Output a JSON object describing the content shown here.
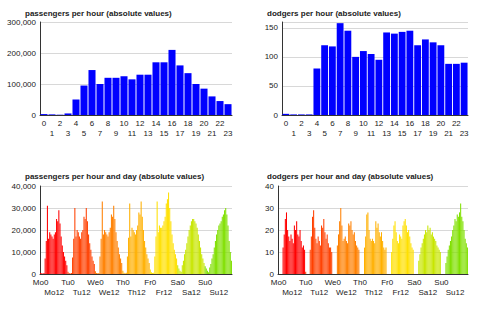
{
  "chart_data": [
    {
      "type": "bar",
      "title": "passengers per hour (absolute values)",
      "categories": [
        "0",
        "1",
        "2",
        "3",
        "4",
        "5",
        "6",
        "7",
        "8",
        "9",
        "10",
        "11",
        "12",
        "13",
        "14",
        "15",
        "16",
        "17",
        "18",
        "19",
        "20",
        "21",
        "22",
        "23"
      ],
      "values": [
        3000,
        2000,
        1000,
        5000,
        50000,
        95000,
        145000,
        100000,
        120000,
        120000,
        125000,
        115000,
        130000,
        130000,
        170000,
        170000,
        210000,
        160000,
        135000,
        100000,
        85000,
        60000,
        45000,
        35000
      ],
      "color": "#0000ff",
      "ylim": [
        0,
        300000
      ],
      "yticks": [
        0,
        {
          "value": 100000,
          "label": "100,000"
        },
        {
          "value": 200000,
          "label": "200,000"
        },
        {
          "value": 300000,
          "label": "300,000"
        }
      ],
      "grid": true
    },
    {
      "type": "bar",
      "title": "dodgers per hour (absolute values)",
      "categories": [
        "0",
        "1",
        "2",
        "3",
        "4",
        "5",
        "6",
        "7",
        "8",
        "9",
        "10",
        "11",
        "12",
        "13",
        "14",
        "15",
        "16",
        "17",
        "18",
        "19",
        "20",
        "21",
        "22",
        "23"
      ],
      "values": [
        2,
        1,
        1,
        1,
        80,
        120,
        118,
        158,
        145,
        100,
        110,
        105,
        95,
        142,
        140,
        143,
        145,
        120,
        130,
        125,
        120,
        88,
        88,
        90
      ],
      "color": "#0000ff",
      "ylim": [
        0,
        160
      ],
      "yticks": [
        0,
        50,
        100,
        150
      ],
      "grid": true
    },
    {
      "type": "bar",
      "title": "passengers per hour and day (absolute values)",
      "categories": [
        "Mo0",
        null,
        null,
        null,
        null,
        null,
        null,
        null,
        null,
        null,
        null,
        null,
        "Mo12",
        null,
        null,
        null,
        null,
        null,
        null,
        null,
        null,
        null,
        null,
        null,
        "Tu0",
        null,
        null,
        null,
        null,
        null,
        null,
        null,
        null,
        null,
        null,
        null,
        "Tu12",
        null,
        null,
        null,
        null,
        null,
        null,
        null,
        null,
        null,
        null,
        null,
        "We0",
        null,
        null,
        null,
        null,
        null,
        null,
        null,
        null,
        null,
        null,
        null,
        "We12",
        null,
        null,
        null,
        null,
        null,
        null,
        null,
        null,
        null,
        null,
        null,
        "Th0",
        null,
        null,
        null,
        null,
        null,
        null,
        null,
        null,
        null,
        null,
        null,
        "Th12",
        null,
        null,
        null,
        null,
        null,
        null,
        null,
        null,
        null,
        null,
        null,
        "Fr0",
        null,
        null,
        null,
        null,
        null,
        null,
        null,
        null,
        null,
        null,
        null,
        "Fr12",
        null,
        null,
        null,
        null,
        null,
        null,
        null,
        null,
        null,
        null,
        null,
        "Sa0",
        null,
        null,
        null,
        null,
        null,
        null,
        null,
        null,
        null,
        null,
        null,
        "Sa12",
        null,
        null,
        null,
        null,
        null,
        null,
        null,
        null,
        null,
        null,
        null,
        "Su0",
        null,
        null,
        null,
        null,
        null,
        null,
        null,
        null,
        null,
        null,
        null,
        "Su12",
        null,
        null,
        null,
        null,
        null,
        null,
        null,
        null,
        null,
        null,
        null
      ],
      "values": [
        500,
        300,
        200,
        400,
        7000,
        15000,
        31000,
        16000,
        19000,
        18000,
        17000,
        16000,
        18000,
        19000,
        25000,
        24000,
        29000,
        23000,
        17000,
        13000,
        10000,
        8000,
        6000,
        4000,
        1000,
        400,
        200,
        500,
        7500,
        16000,
        30000,
        17000,
        20000,
        19000,
        17000,
        16000,
        19000,
        20000,
        26000,
        25000,
        30000,
        24000,
        18000,
        14000,
        11000,
        8000,
        6000,
        4500,
        1200,
        500,
        300,
        500,
        8000,
        16000,
        33000,
        18000,
        20000,
        19000,
        18000,
        17000,
        19000,
        21000,
        27000,
        26000,
        31000,
        25000,
        19000,
        15000,
        12000,
        9000,
        7000,
        5000,
        1500,
        600,
        300,
        600,
        8000,
        16500,
        32000,
        17000,
        21000,
        20000,
        19000,
        18000,
        20000,
        22000,
        28000,
        27000,
        33000,
        26000,
        20000,
        15000,
        12000,
        9000,
        7000,
        5000,
        2000,
        800,
        400,
        600,
        8000,
        17000,
        33000,
        19000,
        22000,
        21000,
        21000,
        22000,
        24000,
        26000,
        32000,
        34000,
        37000,
        30000,
        24000,
        18000,
        14000,
        11000,
        9000,
        7000,
        4000,
        2500,
        1500,
        1000,
        4000,
        6000,
        9000,
        11000,
        14000,
        17000,
        20000,
        22000,
        24000,
        25000,
        25000,
        24000,
        23000,
        21000,
        18000,
        15000,
        12000,
        9000,
        7000,
        5000,
        3500,
        2500,
        1500,
        800,
        3000,
        4500,
        7000,
        9000,
        12000,
        15000,
        18000,
        20000,
        22000,
        23000,
        24000,
        26000,
        27000,
        29000,
        30000,
        27000,
        22000,
        15000,
        10000,
        6000
      ],
      "colors": [
        "#ff0000",
        "#ff0000",
        "#ff0000",
        "#ff0000",
        "#ff0000",
        "#ff0000",
        "#ff0000",
        "#ff0000",
        "#ff0000",
        "#ff0000",
        "#ff0000",
        "#ff0000",
        "#ff0000",
        "#ff0000",
        "#ff0000",
        "#ff0000",
        "#ff0000",
        "#ff0000",
        "#ff0000",
        "#ff0000",
        "#ff0000",
        "#ff0000",
        "#ff0000",
        "#ff0000",
        "#ff4000",
        "#ff4000",
        "#ff4000",
        "#ff4000",
        "#ff4000",
        "#ff4000",
        "#ff4000",
        "#ff4000",
        "#ff4000",
        "#ff4000",
        "#ff4000",
        "#ff4000",
        "#ff4000",
        "#ff4000",
        "#ff4000",
        "#ff4000",
        "#ff4000",
        "#ff4000",
        "#ff4000",
        "#ff4000",
        "#ff4000",
        "#ff4000",
        "#ff4000",
        "#ff4000",
        "#ff8000",
        "#ff8000",
        "#ff8000",
        "#ff8000",
        "#ff8000",
        "#ff8000",
        "#ff8000",
        "#ff8000",
        "#ff8000",
        "#ff8000",
        "#ff8000",
        "#ff8000",
        "#ff8000",
        "#ff8000",
        "#ff8000",
        "#ff8000",
        "#ff8000",
        "#ff8000",
        "#ff8000",
        "#ff8000",
        "#ff8000",
        "#ff8000",
        "#ff8000",
        "#ff8000",
        "#ffb000",
        "#ffb000",
        "#ffb000",
        "#ffb000",
        "#ffb000",
        "#ffb000",
        "#ffb000",
        "#ffb000",
        "#ffb000",
        "#ffb000",
        "#ffb000",
        "#ffb000",
        "#ffb000",
        "#ffb000",
        "#ffb000",
        "#ffb000",
        "#ffb000",
        "#ffb000",
        "#ffb000",
        "#ffb000",
        "#ffb000",
        "#ffb000",
        "#ffb000",
        "#ffb000",
        "#ffe000",
        "#ffe000",
        "#ffe000",
        "#ffe000",
        "#ffe000",
        "#ffe000",
        "#ffe000",
        "#ffe000",
        "#ffe000",
        "#ffe000",
        "#ffe000",
        "#ffe000",
        "#ffe000",
        "#ffe000",
        "#ffe000",
        "#ffe000",
        "#ffe000",
        "#ffe000",
        "#ffe000",
        "#ffe000",
        "#ffe000",
        "#ffe000",
        "#ffe000",
        "#ffe000",
        "#c8e600",
        "#c8e600",
        "#c8e600",
        "#c8e600",
        "#c8e600",
        "#c8e600",
        "#c8e600",
        "#c8e600",
        "#c8e600",
        "#c8e600",
        "#c8e600",
        "#c8e600",
        "#c8e600",
        "#c8e600",
        "#c8e600",
        "#c8e600",
        "#c8e600",
        "#c8e600",
        "#c8e600",
        "#c8e600",
        "#c8e600",
        "#c8e600",
        "#c8e600",
        "#c8e600",
        "#80e000",
        "#80e000",
        "#80e000",
        "#80e000",
        "#80e000",
        "#80e000",
        "#80e000",
        "#80e000",
        "#80e000",
        "#80e000",
        "#80e000",
        "#80e000",
        "#80e000",
        "#80e000",
        "#80e000",
        "#80e000",
        "#80e000",
        "#80e000",
        "#80e000",
        "#80e000",
        "#80e000",
        "#80e000",
        "#80e000",
        "#80e000"
      ],
      "ylim": [
        0,
        40000
      ],
      "yticks": [
        0,
        {
          "value": 10000,
          "label": "10,000"
        },
        {
          "value": 20000,
          "label": "20,000"
        },
        {
          "value": 30000,
          "label": "30,000"
        },
        {
          "value": 40000,
          "label": "40,000"
        }
      ],
      "grid": true
    },
    {
      "type": "bar",
      "title": "dodgers per hour and day (absolute values)",
      "categories": [
        "Mo0",
        null,
        null,
        null,
        null,
        null,
        null,
        null,
        null,
        null,
        null,
        null,
        "Mo12",
        null,
        null,
        null,
        null,
        null,
        null,
        null,
        null,
        null,
        null,
        null,
        "Tu0",
        null,
        null,
        null,
        null,
        null,
        null,
        null,
        null,
        null,
        null,
        null,
        "Tu12",
        null,
        null,
        null,
        null,
        null,
        null,
        null,
        null,
        null,
        null,
        null,
        "We0",
        null,
        null,
        null,
        null,
        null,
        null,
        null,
        null,
        null,
        null,
        null,
        "We12",
        null,
        null,
        null,
        null,
        null,
        null,
        null,
        null,
        null,
        null,
        null,
        "Th0",
        null,
        null,
        null,
        null,
        null,
        null,
        null,
        null,
        null,
        null,
        null,
        "Th12",
        null,
        null,
        null,
        null,
        null,
        null,
        null,
        null,
        null,
        null,
        null,
        "Fr0",
        null,
        null,
        null,
        null,
        null,
        null,
        null,
        null,
        null,
        null,
        null,
        "Fr12",
        null,
        null,
        null,
        null,
        null,
        null,
        null,
        null,
        null,
        null,
        null,
        "Sa0",
        null,
        null,
        null,
        null,
        null,
        null,
        null,
        null,
        null,
        null,
        null,
        "Sa12",
        null,
        null,
        null,
        null,
        null,
        null,
        null,
        null,
        null,
        null,
        null,
        "Su0",
        null,
        null,
        null,
        null,
        null,
        null,
        null,
        null,
        null,
        null,
        null,
        "Su12",
        null,
        null,
        null,
        null,
        null,
        null,
        null,
        null,
        null,
        null,
        null
      ],
      "values": [
        0,
        0,
        0,
        0,
        12,
        18,
        25,
        28,
        20,
        17,
        15,
        18,
        16,
        14,
        22,
        20,
        24,
        18,
        17,
        20,
        15,
        12,
        13,
        11,
        1,
        0,
        0,
        0,
        11,
        17,
        26,
        29,
        21,
        16,
        14,
        17,
        15,
        13,
        22,
        21,
        25,
        19,
        16,
        18,
        14,
        12,
        12,
        10,
        0,
        0,
        0,
        0,
        13,
        18,
        24,
        30,
        22,
        15,
        16,
        17,
        15,
        14,
        23,
        22,
        24,
        20,
        18,
        19,
        15,
        13,
        12,
        11,
        0,
        0,
        0,
        0,
        12,
        17,
        27,
        28,
        20,
        16,
        15,
        16,
        15,
        14,
        24,
        21,
        23,
        19,
        17,
        19,
        15,
        12,
        11,
        12,
        0,
        0,
        0,
        0,
        10,
        16,
        22,
        24,
        19,
        15,
        14,
        18,
        17,
        16,
        22,
        24,
        25,
        22,
        19,
        20,
        17,
        14,
        12,
        11,
        0,
        0,
        0,
        0,
        6,
        9,
        12,
        14,
        16,
        18,
        20,
        19,
        22,
        20,
        21,
        18,
        19,
        17,
        16,
        15,
        13,
        12,
        11,
        10,
        0,
        0,
        0,
        0,
        5,
        8,
        11,
        13,
        15,
        17,
        20,
        22,
        25,
        24,
        27,
        26,
        28,
        32,
        26,
        24,
        20,
        16,
        14,
        12
      ],
      "colors": [
        "#ff0000",
        "#ff0000",
        "#ff0000",
        "#ff0000",
        "#ff0000",
        "#ff0000",
        "#ff0000",
        "#ff0000",
        "#ff0000",
        "#ff0000",
        "#ff0000",
        "#ff0000",
        "#ff0000",
        "#ff0000",
        "#ff0000",
        "#ff0000",
        "#ff0000",
        "#ff0000",
        "#ff0000",
        "#ff0000",
        "#ff0000",
        "#ff0000",
        "#ff0000",
        "#ff0000",
        "#ff4000",
        "#ff4000",
        "#ff4000",
        "#ff4000",
        "#ff4000",
        "#ff4000",
        "#ff4000",
        "#ff4000",
        "#ff4000",
        "#ff4000",
        "#ff4000",
        "#ff4000",
        "#ff4000",
        "#ff4000",
        "#ff4000",
        "#ff4000",
        "#ff4000",
        "#ff4000",
        "#ff4000",
        "#ff4000",
        "#ff4000",
        "#ff4000",
        "#ff4000",
        "#ff4000",
        "#ff8000",
        "#ff8000",
        "#ff8000",
        "#ff8000",
        "#ff8000",
        "#ff8000",
        "#ff8000",
        "#ff8000",
        "#ff8000",
        "#ff8000",
        "#ff8000",
        "#ff8000",
        "#ff8000",
        "#ff8000",
        "#ff8000",
        "#ff8000",
        "#ff8000",
        "#ff8000",
        "#ff8000",
        "#ff8000",
        "#ff8000",
        "#ff8000",
        "#ff8000",
        "#ff8000",
        "#ffb000",
        "#ffb000",
        "#ffb000",
        "#ffb000",
        "#ffb000",
        "#ffb000",
        "#ffb000",
        "#ffb000",
        "#ffb000",
        "#ffb000",
        "#ffb000",
        "#ffb000",
        "#ffb000",
        "#ffb000",
        "#ffb000",
        "#ffb000",
        "#ffb000",
        "#ffb000",
        "#ffb000",
        "#ffb000",
        "#ffb000",
        "#ffb000",
        "#ffb000",
        "#ffb000",
        "#ffe000",
        "#ffe000",
        "#ffe000",
        "#ffe000",
        "#ffe000",
        "#ffe000",
        "#ffe000",
        "#ffe000",
        "#ffe000",
        "#ffe000",
        "#ffe000",
        "#ffe000",
        "#ffe000",
        "#ffe000",
        "#ffe000",
        "#ffe000",
        "#ffe000",
        "#ffe000",
        "#ffe000",
        "#ffe000",
        "#ffe000",
        "#ffe000",
        "#ffe000",
        "#ffe000",
        "#c8e600",
        "#c8e600",
        "#c8e600",
        "#c8e600",
        "#c8e600",
        "#c8e600",
        "#c8e600",
        "#c8e600",
        "#c8e600",
        "#c8e600",
        "#c8e600",
        "#c8e600",
        "#c8e600",
        "#c8e600",
        "#c8e600",
        "#c8e600",
        "#c8e600",
        "#c8e600",
        "#c8e600",
        "#c8e600",
        "#c8e600",
        "#c8e600",
        "#c8e600",
        "#c8e600",
        "#80e000",
        "#80e000",
        "#80e000",
        "#80e000",
        "#80e000",
        "#80e000",
        "#80e000",
        "#80e000",
        "#80e000",
        "#80e000",
        "#80e000",
        "#80e000",
        "#80e000",
        "#80e000",
        "#80e000",
        "#80e000",
        "#80e000",
        "#80e000",
        "#80e000",
        "#80e000",
        "#80e000",
        "#80e000",
        "#80e000",
        "#80e000"
      ],
      "ylim": [
        0,
        40
      ],
      "yticks": [
        0,
        10,
        20,
        30,
        40
      ],
      "grid": true
    }
  ]
}
